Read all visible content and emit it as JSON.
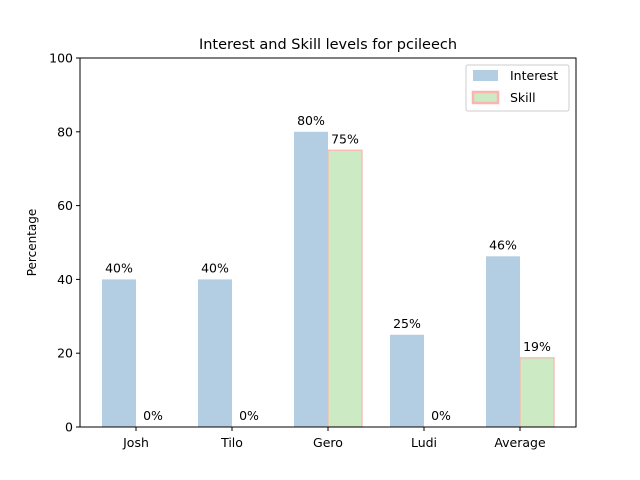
{
  "chart_data": {
    "type": "bar",
    "title": "Interest and Skill levels for pcileech",
    "xlabel": "",
    "ylabel": "Percentage",
    "ylim": [
      0,
      100
    ],
    "yticks": [
      0,
      20,
      40,
      60,
      80,
      100
    ],
    "categories": [
      "Josh",
      "Tilo",
      "Gero",
      "Ludi",
      "Average"
    ],
    "series": [
      {
        "name": "Interest",
        "values": [
          40,
          40,
          80,
          25,
          46.25
        ],
        "labels": [
          "40%",
          "40%",
          "80%",
          "25%",
          "46%"
        ],
        "color": "#b3cde3"
      },
      {
        "name": "Skill",
        "values": [
          0,
          0,
          75,
          0,
          18.75
        ],
        "labels": [
          "0%",
          "0%",
          "75%",
          "0%",
          "19%"
        ],
        "color": "#ccebc5",
        "edge_color": "#fbb4ae"
      }
    ],
    "legend": "top-right",
    "grid": false
  }
}
